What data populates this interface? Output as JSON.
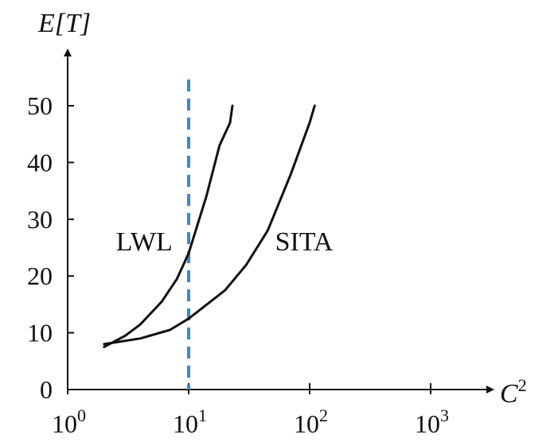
{
  "chart_data": {
    "type": "line",
    "title": "",
    "ylabel": "E[T]",
    "xlabel": "C",
    "xlabel_sup": "2",
    "xscale": "log",
    "xlim": [
      1,
      1000
    ],
    "ylim": [
      0,
      50
    ],
    "yticks": [
      0,
      10,
      20,
      30,
      40,
      50
    ],
    "xticks": [
      {
        "value": 1,
        "base": "10",
        "exp": "0"
      },
      {
        "value": 10,
        "base": "10",
        "exp": "1"
      },
      {
        "value": 100,
        "base": "10",
        "exp": "2"
      },
      {
        "value": 1000,
        "base": "10",
        "exp": "3"
      }
    ],
    "grid": false,
    "legend": "none",
    "series": [
      {
        "name": "LWL",
        "color": "#111111",
        "x": [
          2,
          3,
          4,
          6,
          8,
          10,
          14,
          18,
          22,
          23
        ],
        "y": [
          7.5,
          9.5,
          11.5,
          15.5,
          19.5,
          24,
          34,
          43,
          47,
          50
        ]
      },
      {
        "name": "SITA",
        "color": "#111111",
        "x": [
          2,
          4,
          7,
          10,
          20,
          30,
          45,
          70,
          100,
          110
        ],
        "y": [
          8,
          9,
          10.5,
          12.5,
          17.5,
          22,
          28,
          38,
          47,
          50
        ]
      }
    ],
    "reference_line": {
      "x": 10,
      "color": "#3a87d6",
      "style": "dashed"
    },
    "label_positions": [
      {
        "series": "LWL",
        "x": 4.3,
        "y": 24.5
      },
      {
        "series": "SITA",
        "x": 90,
        "y": 24.5
      }
    ]
  }
}
